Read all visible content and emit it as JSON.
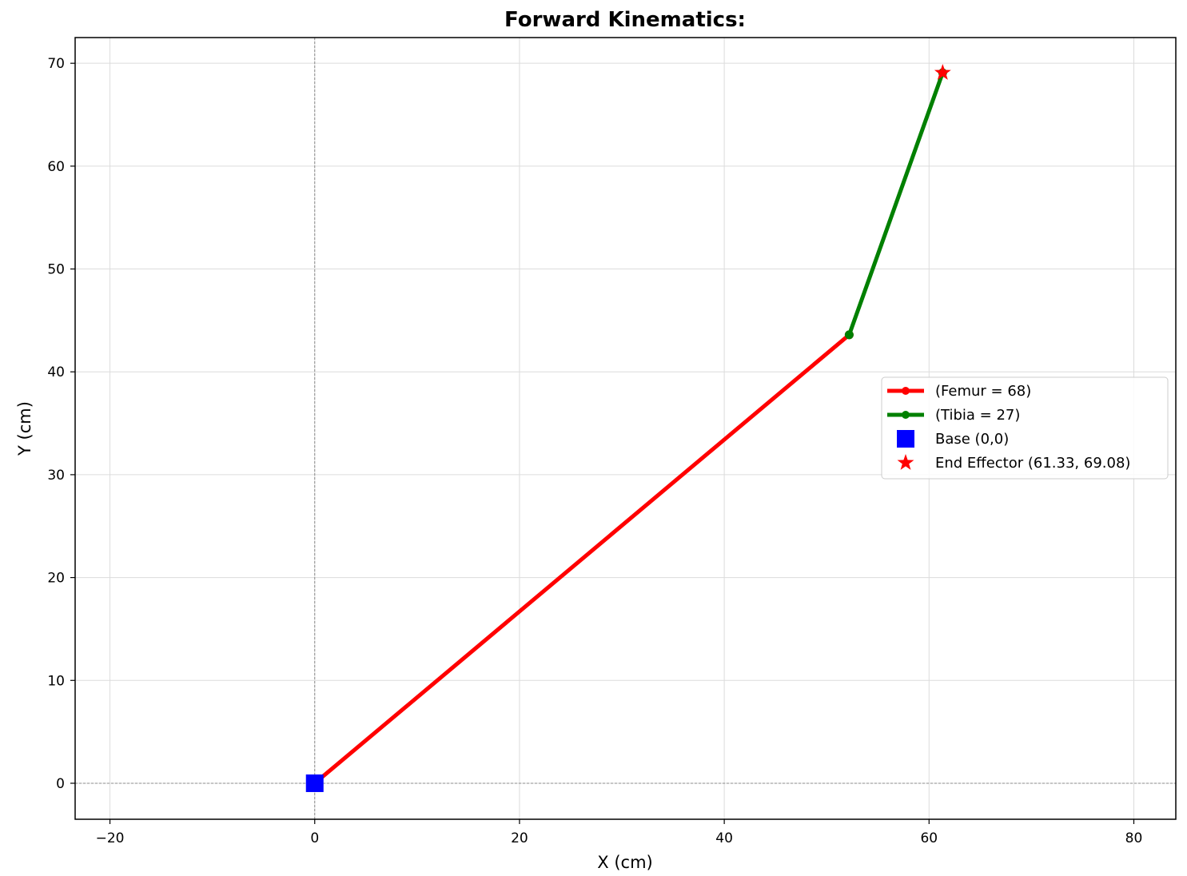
{
  "chart_data": {
    "type": "line",
    "title": "Forward Kinematics:",
    "xlabel": "X (cm)",
    "ylabel": "Y (cm)",
    "xlim": [
      -23.4,
      84.1
    ],
    "ylim": [
      -3.5,
      72.5
    ],
    "xticks": [
      -20,
      0,
      20,
      40,
      60,
      80
    ],
    "xtick_labels": [
      "−20",
      "0",
      "20",
      "40",
      "60",
      "80"
    ],
    "yticks": [
      0,
      10,
      20,
      30,
      40,
      50,
      60,
      70
    ],
    "ytick_labels": [
      "0",
      "10",
      "20",
      "30",
      "40",
      "50",
      "60",
      "70"
    ],
    "grid": true,
    "reference_lines": {
      "x": 0,
      "y": 0
    },
    "legend_position": "center-right",
    "series": [
      {
        "name": "(Femur = 68)",
        "kind": "line",
        "color": "#ff0000",
        "x": [
          0,
          52.2
        ],
        "y": [
          0,
          43.6
        ]
      },
      {
        "name": "(Tibia = 27)",
        "kind": "line",
        "color": "#008000",
        "x": [
          52.2,
          61.33
        ],
        "y": [
          43.6,
          69.08
        ]
      },
      {
        "name": "Base (0,0)",
        "kind": "marker",
        "marker": "square",
        "color": "#0000ff",
        "x": [
          0
        ],
        "y": [
          0
        ]
      },
      {
        "name": "End Effector (61.33, 69.08)",
        "kind": "marker",
        "marker": "star",
        "color": "#ff0000",
        "x": [
          61.33
        ],
        "y": [
          69.08
        ]
      }
    ]
  }
}
